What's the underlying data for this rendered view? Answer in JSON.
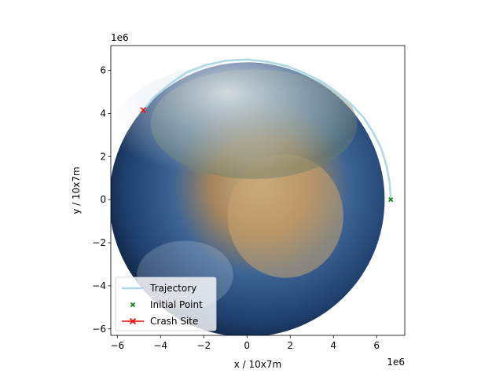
{
  "chart_data": {
    "type": "scatter",
    "xlabel": "x / 10x7m",
    "ylabel": "y / 10x7m",
    "x_offset_text": "1e6",
    "y_offset_text": "1e6",
    "xlim": [
      -6.3,
      7.3
    ],
    "ylim": [
      -6.3,
      7.15
    ],
    "xticks": [
      -6,
      -4,
      -2,
      0,
      2,
      4,
      6
    ],
    "yticks": [
      -6,
      -4,
      -2,
      0,
      2,
      4,
      6
    ],
    "x_tick_labels": [
      "−6",
      "−4",
      "−2",
      "0",
      "2",
      "4",
      "6"
    ],
    "y_tick_labels": [
      "−6",
      "−4",
      "−2",
      "0",
      "2",
      "4",
      "6"
    ],
    "background_image": "earth-globe",
    "planet_radius": 6.37,
    "legend_position": "lower left",
    "series": [
      {
        "name": "Trajectory",
        "kind": "line",
        "color": "#add8e6",
        "points": [
          [
            6.65,
            0.0
          ],
          [
            6.6,
            0.8
          ],
          [
            6.45,
            1.6
          ],
          [
            6.2,
            2.4
          ],
          [
            5.85,
            3.1
          ],
          [
            5.4,
            3.8
          ],
          [
            4.85,
            4.4
          ],
          [
            4.2,
            4.95
          ],
          [
            3.5,
            5.45
          ],
          [
            2.7,
            5.85
          ],
          [
            1.85,
            6.2
          ],
          [
            0.95,
            6.4
          ],
          [
            0.0,
            6.5
          ],
          [
            -0.95,
            6.45
          ],
          [
            -1.9,
            6.25
          ],
          [
            -2.8,
            5.9
          ],
          [
            -3.6,
            5.35
          ],
          [
            -4.3,
            4.75
          ],
          [
            -4.8,
            4.15
          ]
        ]
      },
      {
        "name": "Initial Point",
        "kind": "marker",
        "marker": "x",
        "color": "#008000",
        "points": [
          [
            6.65,
            0.0
          ]
        ]
      },
      {
        "name": "Crash Site",
        "kind": "line-marker",
        "marker": "x",
        "color": "#ff0000",
        "points": [
          [
            -4.8,
            4.15
          ]
        ]
      }
    ]
  }
}
